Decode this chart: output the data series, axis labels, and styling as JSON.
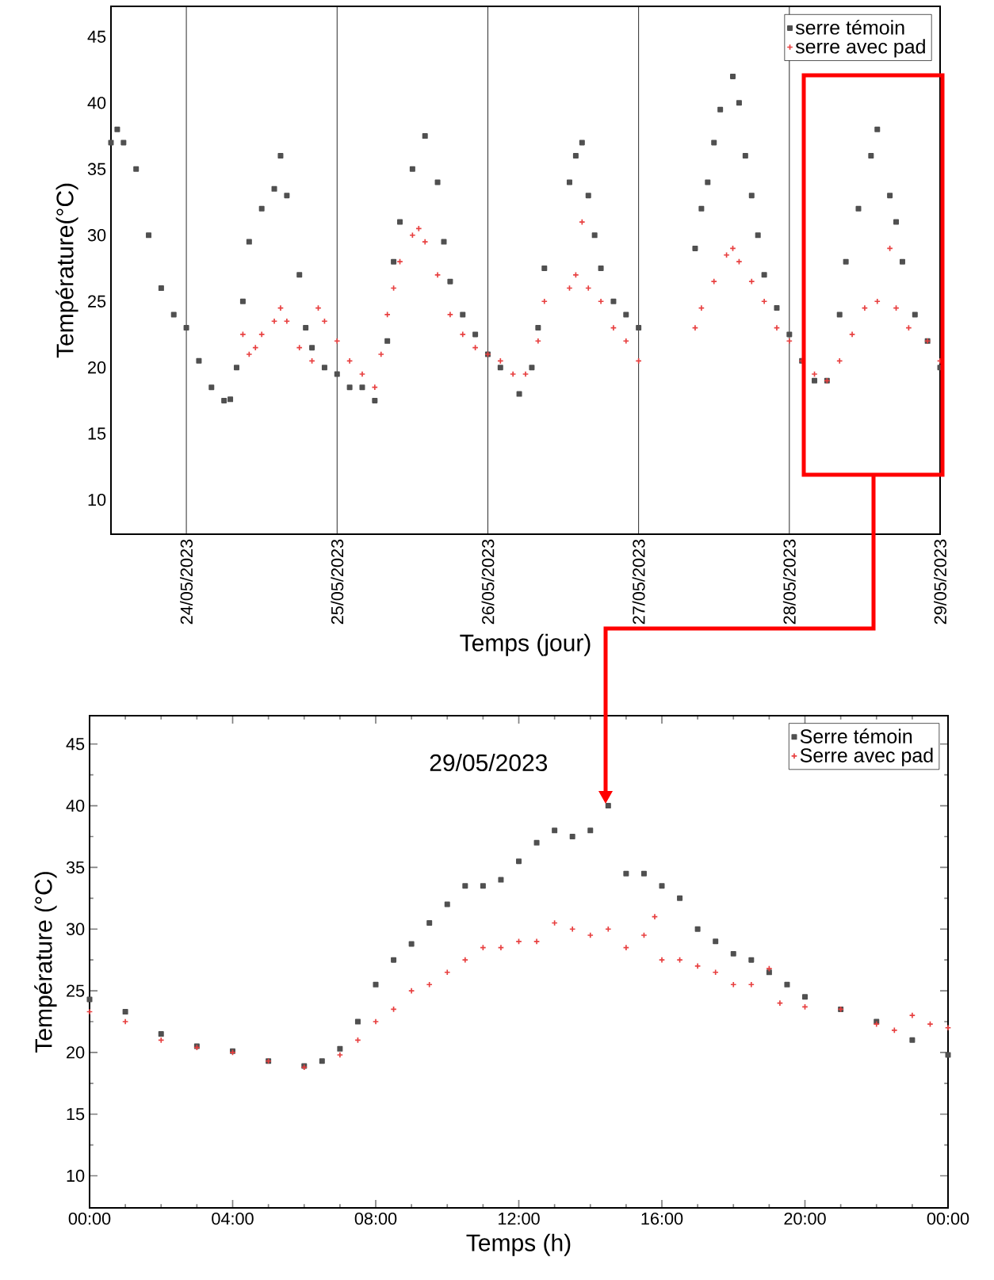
{
  "chart_data": [
    {
      "type": "scatter",
      "xlabel": "Temps (jour)",
      "ylabel": "Température(°C)",
      "xlim": [
        "2023-05-23T12:00",
        "2023-05-29T00:00"
      ],
      "ylim": [
        7.4,
        47.3
      ],
      "xticks": [
        {
          "value": "2023-05-24",
          "label": "24/05/2023"
        },
        {
          "value": "2023-05-25",
          "label": "25/05/2023"
        },
        {
          "value": "2023-05-26",
          "label": "26/05/2023"
        },
        {
          "value": "2023-05-27",
          "label": "27/05/2023"
        },
        {
          "value": "2023-05-28",
          "label": "28/05/2023"
        },
        {
          "value": "2023-05-29",
          "label": "29/05/2023"
        }
      ],
      "yticks": [
        10,
        15,
        20,
        25,
        30,
        35,
        40,
        45
      ],
      "grid": "x",
      "legend": "top right",
      "series": [
        {
          "name": "serre témoin",
          "color": "#505050",
          "marker": "square",
          "x": [
            "2023-05-23T12:00",
            "2023-05-23T13:00",
            "2023-05-23T14:00",
            "2023-05-23T16:00",
            "2023-05-23T18:00",
            "2023-05-23T20:00",
            "2023-05-23T22:00",
            "2023-05-24T00:00",
            "2023-05-24T02:00",
            "2023-05-24T04:00",
            "2023-05-24T06:00",
            "2023-05-24T07:00",
            "2023-05-24T08:00",
            "2023-05-24T09:00",
            "2023-05-24T10:00",
            "2023-05-24T12:00",
            "2023-05-24T14:00",
            "2023-05-24T15:00",
            "2023-05-24T16:00",
            "2023-05-24T18:00",
            "2023-05-24T19:00",
            "2023-05-24T20:00",
            "2023-05-24T22:00",
            "2023-05-25T00:00",
            "2023-05-25T02:00",
            "2023-05-25T04:00",
            "2023-05-25T06:00",
            "2023-05-25T08:00",
            "2023-05-25T09:00",
            "2023-05-25T10:00",
            "2023-05-25T12:00",
            "2023-05-25T14:00",
            "2023-05-25T16:00",
            "2023-05-25T17:00",
            "2023-05-25T18:00",
            "2023-05-25T20:00",
            "2023-05-25T22:00",
            "2023-05-26T00:00",
            "2023-05-26T02:00",
            "2023-05-26T05:00",
            "2023-05-26T07:00",
            "2023-05-26T08:00",
            "2023-05-26T09:00",
            "2023-05-26T13:00",
            "2023-05-26T14:00",
            "2023-05-26T15:00",
            "2023-05-26T16:00",
            "2023-05-26T17:00",
            "2023-05-26T18:00",
            "2023-05-26T20:00",
            "2023-05-26T22:00",
            "2023-05-27T00:00",
            "2023-05-27T09:00",
            "2023-05-27T10:00",
            "2023-05-27T11:00",
            "2023-05-27T12:00",
            "2023-05-27T13:00",
            "2023-05-27T15:00",
            "2023-05-27T16:00",
            "2023-05-27T17:00",
            "2023-05-27T18:00",
            "2023-05-27T19:00",
            "2023-05-27T20:00",
            "2023-05-27T22:00",
            "2023-05-28T00:00",
            "2023-05-28T02:00",
            "2023-05-28T04:00",
            "2023-05-28T06:00",
            "2023-05-28T08:00",
            "2023-05-28T09:00",
            "2023-05-28T11:00",
            "2023-05-28T13:00",
            "2023-05-28T14:00",
            "2023-05-28T16:00",
            "2023-05-28T17:00",
            "2023-05-28T18:00",
            "2023-05-28T20:00",
            "2023-05-28T22:00",
            "2023-05-29T00:00"
          ],
          "values": [
            37,
            38,
            37,
            35,
            30,
            26,
            24,
            23,
            20.5,
            18.5,
            17.5,
            17.6,
            20,
            25,
            29.5,
            32,
            33.5,
            36,
            33,
            27,
            23,
            21.5,
            20,
            19.5,
            18.5,
            18.5,
            17.5,
            22,
            28,
            31,
            35,
            37.5,
            34,
            29.5,
            26.5,
            24,
            22.5,
            21,
            20,
            18,
            20,
            23,
            27.5,
            34,
            36,
            37,
            33,
            30,
            27.5,
            25,
            24,
            23,
            29,
            32,
            34,
            37,
            39.5,
            42,
            40,
            36,
            33,
            30,
            27,
            24.5,
            22.5,
            20.5,
            19,
            19,
            24,
            28,
            32,
            36,
            38,
            33,
            31,
            28,
            24,
            22,
            20
          ]
        },
        {
          "name": "serre avec pad",
          "color": "#e84040",
          "marker": "cross",
          "x": [
            "2023-05-24T09:00",
            "2023-05-24T10:00",
            "2023-05-24T11:00",
            "2023-05-24T12:00",
            "2023-05-24T14:00",
            "2023-05-24T15:00",
            "2023-05-24T16:00",
            "2023-05-24T18:00",
            "2023-05-24T20:00",
            "2023-05-24T21:00",
            "2023-05-24T22:00",
            "2023-05-25T00:00",
            "2023-05-25T02:00",
            "2023-05-25T04:00",
            "2023-05-25T06:00",
            "2023-05-25T07:00",
            "2023-05-25T08:00",
            "2023-05-25T09:00",
            "2023-05-25T10:00",
            "2023-05-25T12:00",
            "2023-05-25T13:00",
            "2023-05-25T14:00",
            "2023-05-25T16:00",
            "2023-05-25T18:00",
            "2023-05-25T20:00",
            "2023-05-25T22:00",
            "2023-05-26T00:00",
            "2023-05-26T02:00",
            "2023-05-26T04:00",
            "2023-05-26T06:00",
            "2023-05-26T08:00",
            "2023-05-26T09:00",
            "2023-05-26T13:00",
            "2023-05-26T14:00",
            "2023-05-26T15:00",
            "2023-05-26T16:00",
            "2023-05-26T18:00",
            "2023-05-26T20:00",
            "2023-05-26T22:00",
            "2023-05-27T00:00",
            "2023-05-27T09:00",
            "2023-05-27T10:00",
            "2023-05-27T12:00",
            "2023-05-27T14:00",
            "2023-05-27T15:00",
            "2023-05-27T16:00",
            "2023-05-27T18:00",
            "2023-05-27T20:00",
            "2023-05-27T22:00",
            "2023-05-28T00:00",
            "2023-05-28T02:00",
            "2023-05-28T04:00",
            "2023-05-28T06:00",
            "2023-05-28T08:00",
            "2023-05-28T10:00",
            "2023-05-28T12:00",
            "2023-05-28T14:00",
            "2023-05-28T16:00",
            "2023-05-28T17:00",
            "2023-05-28T19:00",
            "2023-05-28T22:00",
            "2023-05-29T00:00"
          ],
          "values": [
            22.5,
            21,
            21.5,
            22.5,
            23.5,
            24.5,
            23.5,
            21.5,
            20.5,
            24.5,
            23.5,
            22,
            20.5,
            19.5,
            18.5,
            21,
            24,
            26,
            28,
            30,
            30.5,
            29.5,
            27,
            24,
            22.5,
            21.5,
            21,
            20.5,
            19.5,
            19.5,
            22,
            25,
            26,
            27,
            31,
            26,
            25,
            23,
            22,
            20.5,
            23,
            24.5,
            26.5,
            28.5,
            29,
            28,
            26.5,
            25,
            23,
            22,
            20.5,
            19.5,
            19,
            20.5,
            22.5,
            24.5,
            25,
            29,
            24.5,
            23,
            22,
            20.5
          ]
        }
      ]
    },
    {
      "type": "scatter",
      "xlabel": "Temps (h)",
      "ylabel": "Température (°C)",
      "annotations": [
        "29/05/2023"
      ],
      "xlim": [
        0,
        24
      ],
      "ylim": [
        7.4,
        47.3
      ],
      "xticks": [
        {
          "value": 0,
          "label": "00:00"
        },
        {
          "value": 4,
          "label": "04:00"
        },
        {
          "value": 8,
          "label": "08:00"
        },
        {
          "value": 12,
          "label": "12:00"
        },
        {
          "value": 16,
          "label": "16:00"
        },
        {
          "value": 20,
          "label": "20:00"
        },
        {
          "value": 24,
          "label": "00:00"
        }
      ],
      "yticks": [
        10,
        15,
        20,
        25,
        30,
        35,
        40,
        45
      ],
      "legend": "top right",
      "series": [
        {
          "name": "Serre témoin",
          "color": "#505050",
          "marker": "square",
          "x": [
            0,
            1,
            2,
            3,
            4,
            5,
            6,
            6.5,
            7,
            7.5,
            8,
            8.5,
            9,
            9.5,
            10,
            10.5,
            11,
            11.5,
            12,
            12.5,
            13,
            13.5,
            14,
            14.5,
            15,
            15.5,
            16,
            16.5,
            17,
            17.5,
            18,
            18.5,
            19,
            19.5,
            20,
            21,
            22,
            23,
            24
          ],
          "values": [
            24.3,
            23.3,
            21.5,
            20.5,
            20.1,
            19.3,
            18.9,
            19.3,
            20.3,
            22.5,
            25.5,
            27.5,
            28.8,
            30.5,
            32,
            33.5,
            33.5,
            34,
            35.5,
            37,
            38,
            37.5,
            38,
            40,
            34.5,
            34.5,
            33.5,
            32.5,
            30,
            29,
            28,
            27.5,
            26.5,
            25.5,
            24.5,
            23.5,
            22.5,
            21,
            19.8
          ]
        },
        {
          "name": "Serre avec pad",
          "color": "#e84040",
          "marker": "cross",
          "x": [
            0,
            1,
            2,
            3,
            4,
            5,
            6,
            7,
            7.5,
            8,
            8.5,
            9,
            9.5,
            10,
            10.5,
            11,
            11.5,
            12,
            12.5,
            13,
            13.5,
            14,
            14.5,
            15,
            15.5,
            15.8,
            16,
            16.5,
            17,
            17.5,
            18,
            18.5,
            19,
            19.3,
            20,
            21,
            22,
            22.5,
            23,
            23.5,
            24
          ],
          "values": [
            23.3,
            22.5,
            21,
            20.4,
            20,
            19.3,
            18.8,
            19.8,
            21,
            22.5,
            23.5,
            25,
            25.5,
            26.5,
            27.5,
            28.5,
            28.5,
            29,
            29,
            30.5,
            30,
            29.5,
            30,
            28.5,
            29.5,
            31,
            27.5,
            27.5,
            27,
            26.5,
            25.5,
            25.5,
            26.8,
            24,
            23.7,
            23.5,
            22.3,
            21.8,
            23,
            22.3,
            22
          ]
        }
      ]
    }
  ]
}
